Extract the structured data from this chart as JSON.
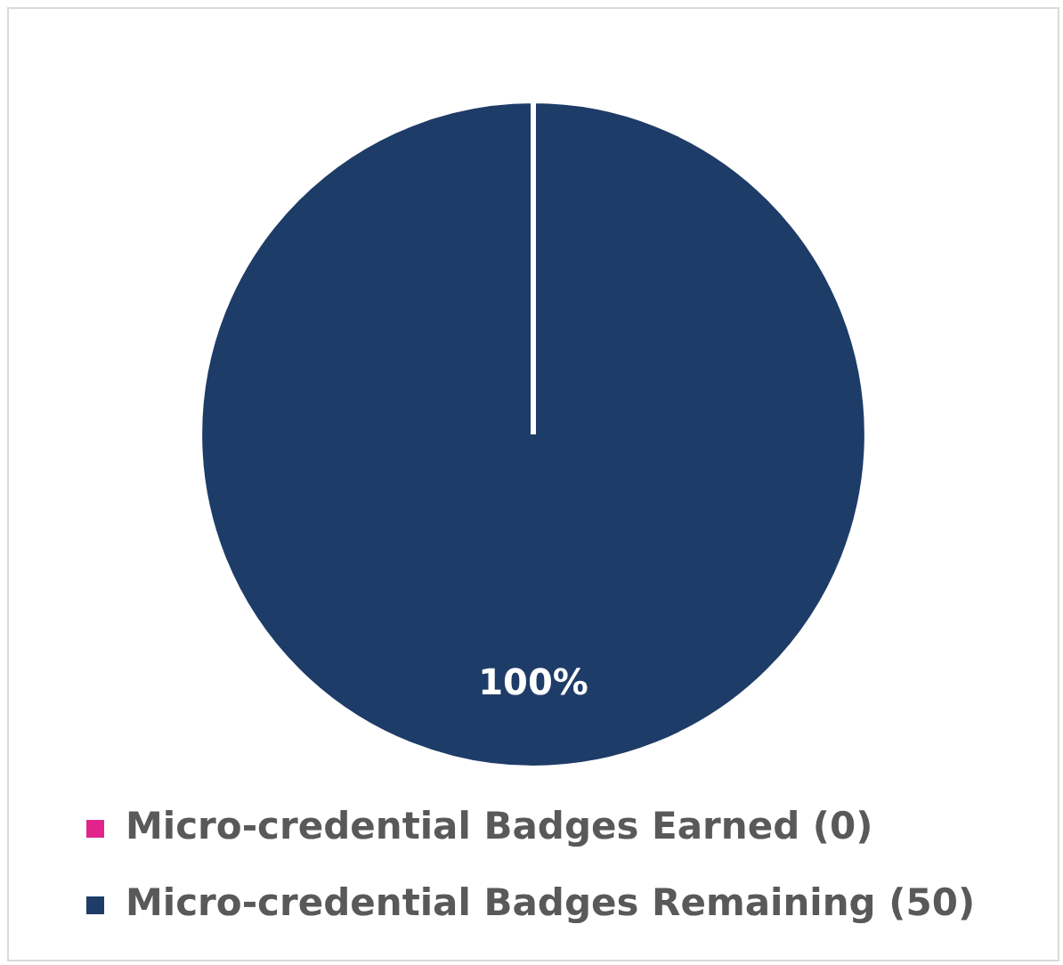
{
  "chart_data": {
    "type": "pie",
    "categories": [
      "Micro-credential Badges Earned (0)",
      "Micro-credential Badges Remaining (50)"
    ],
    "values": [
      0,
      100
    ],
    "colors": [
      "#e2238c",
      "#1e3c68"
    ],
    "value_labels": [
      null,
      "100%"
    ],
    "legend": "bottom"
  }
}
